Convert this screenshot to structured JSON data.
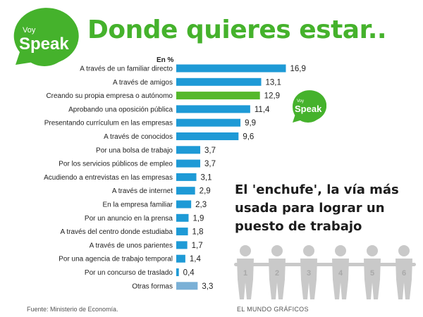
{
  "header": {
    "logo_small": "Voy",
    "logo_big": "Speak",
    "title": "Donde quieres estar.."
  },
  "badge": {
    "small": "Voy",
    "big": "Speak"
  },
  "headline": "El 'enchufe', la vía más usada para lograr un puesto de trabajo",
  "footer": {
    "source": "Fuente: Ministerio de Economía.",
    "credit": "EL MUNDO GRÁFICOS"
  },
  "people_numbers": [
    "1",
    "2",
    "3",
    "4",
    "5",
    "6"
  ],
  "colors": {
    "brand_green": "#45b22c",
    "bar_blue": "#1e9ad6",
    "bar_highlight": "#55b82c",
    "bar_other": "#7ab0d6",
    "people_gray": "#c9c9c9"
  },
  "chart_data": {
    "type": "bar",
    "orientation": "horizontal",
    "unit_label": "En %",
    "categories": [
      "A través de un familiar directo",
      "A través de amigos",
      "Creando su propia empresa o autónomo",
      "Aprobando una oposición pública",
      "Presentando currículum en las empresas",
      "A través de conocidos",
      "Por una bolsa de trabajo",
      "Por los servicios públicos de empleo",
      "Acudiendo a entrevistas en las empresas",
      "A través de internet",
      "En la empresa familiar",
      "Por un anuncio en la prensa",
      "A través del centro donde estudiaba",
      "A través de unos parientes",
      "Por una agencia de trabajo temporal",
      "Por un concurso de traslado",
      "Otras formas"
    ],
    "values": [
      16.9,
      13.1,
      12.9,
      11.4,
      9.9,
      9.6,
      3.7,
      3.7,
      3.1,
      2.9,
      2.3,
      1.9,
      1.8,
      1.7,
      1.4,
      0.4,
      3.3
    ],
    "value_labels": [
      "16,9",
      "13,1",
      "12,9",
      "11,4",
      "9,9",
      "9,6",
      "3,7",
      "3,7",
      "3,1",
      "2,9",
      "2,3",
      "1,9",
      "1,8",
      "1,7",
      "1,4",
      "0,4",
      "3,3"
    ],
    "bar_styles": [
      "normal",
      "normal",
      "highlight",
      "normal",
      "normal",
      "normal",
      "normal",
      "normal",
      "normal",
      "normal",
      "normal",
      "normal",
      "normal",
      "normal",
      "normal",
      "normal",
      "other"
    ],
    "grid": false,
    "legend": "none"
  }
}
